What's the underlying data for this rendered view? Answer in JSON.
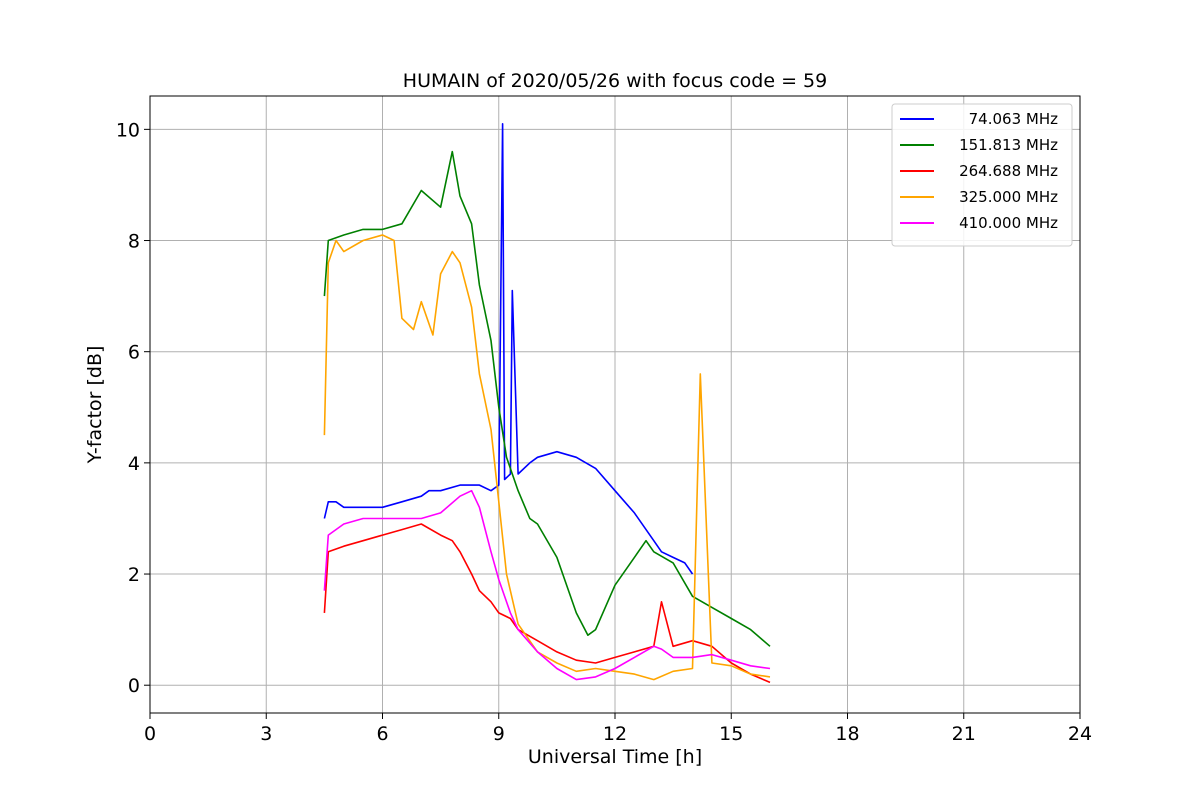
{
  "chart_data": {
    "type": "line",
    "title": "HUMAIN of 2020/05/26 with focus code = 59",
    "xlabel": "Universal Time [h]",
    "ylabel": "Y-factor [dB]",
    "xlim": [
      0,
      24
    ],
    "ylim": [
      -0.5,
      10.6
    ],
    "xticks": [
      0,
      3,
      6,
      9,
      12,
      15,
      18,
      21,
      24
    ],
    "yticks": [
      0,
      2,
      4,
      6,
      8,
      10
    ],
    "grid": true,
    "legend_position": "top-right",
    "series": [
      {
        "name": "74.063 MHz",
        "color": "#0000ff",
        "x": [
          4.5,
          4.6,
          4.8,
          5.0,
          5.5,
          6.0,
          6.5,
          7.0,
          7.2,
          7.5,
          8.0,
          8.5,
          8.8,
          9.0,
          9.1,
          9.15,
          9.3,
          9.35,
          9.5,
          9.8,
          10.0,
          10.5,
          11.0,
          11.5,
          12.0,
          12.5,
          13.0,
          13.2,
          13.5,
          13.8,
          14.0
        ],
        "y": [
          3.0,
          3.3,
          3.3,
          3.2,
          3.2,
          3.2,
          3.3,
          3.4,
          3.5,
          3.5,
          3.6,
          3.6,
          3.5,
          3.6,
          10.1,
          3.7,
          3.8,
          7.1,
          3.8,
          4.0,
          4.1,
          4.2,
          4.1,
          3.9,
          3.5,
          3.1,
          2.6,
          2.4,
          2.3,
          2.2,
          2.0
        ]
      },
      {
        "name": "151.813 MHz",
        "color": "#008000",
        "x": [
          4.5,
          4.6,
          5.0,
          5.5,
          6.0,
          6.5,
          7.0,
          7.5,
          7.8,
          8.0,
          8.3,
          8.5,
          8.8,
          9.0,
          9.2,
          9.5,
          9.8,
          10.0,
          10.5,
          11.0,
          11.3,
          11.5,
          12.0,
          12.5,
          12.8,
          13.0,
          13.5,
          14.0,
          14.5,
          15.0,
          15.5,
          16.0
        ],
        "y": [
          7.0,
          8.0,
          8.1,
          8.2,
          8.2,
          8.3,
          8.9,
          8.6,
          9.6,
          8.8,
          8.3,
          7.2,
          6.2,
          5.0,
          4.1,
          3.5,
          3.0,
          2.9,
          2.3,
          1.3,
          0.9,
          1.0,
          1.8,
          2.3,
          2.6,
          2.4,
          2.2,
          1.6,
          1.4,
          1.2,
          1.0,
          0.7
        ]
      },
      {
        "name": "264.688 MHz",
        "color": "#ff0000",
        "x": [
          4.5,
          4.6,
          5.0,
          5.5,
          6.0,
          6.5,
          7.0,
          7.5,
          7.8,
          8.0,
          8.3,
          8.5,
          8.8,
          9.0,
          9.3,
          9.5,
          10.0,
          10.5,
          11.0,
          11.5,
          12.0,
          12.5,
          13.0,
          13.2,
          13.5,
          14.0,
          14.5,
          15.0,
          15.5,
          16.0
        ],
        "y": [
          1.3,
          2.4,
          2.5,
          2.6,
          2.7,
          2.8,
          2.9,
          2.7,
          2.6,
          2.4,
          2.0,
          1.7,
          1.5,
          1.3,
          1.2,
          1.0,
          0.8,
          0.6,
          0.45,
          0.4,
          0.5,
          0.6,
          0.7,
          1.5,
          0.7,
          0.8,
          0.7,
          0.4,
          0.2,
          0.05
        ]
      },
      {
        "name": "325.000 MHz",
        "color": "#ffa500",
        "x": [
          4.5,
          4.6,
          4.8,
          5.0,
          5.5,
          6.0,
          6.3,
          6.5,
          6.8,
          7.0,
          7.3,
          7.5,
          7.8,
          8.0,
          8.3,
          8.5,
          8.8,
          9.0,
          9.2,
          9.5,
          10.0,
          10.5,
          11.0,
          11.5,
          12.0,
          12.5,
          13.0,
          13.5,
          14.0,
          14.2,
          14.5,
          15.0,
          15.5,
          16.0
        ],
        "y": [
          4.5,
          7.6,
          8.0,
          7.8,
          8.0,
          8.1,
          8.0,
          6.6,
          6.4,
          6.9,
          6.3,
          7.4,
          7.8,
          7.6,
          6.8,
          5.6,
          4.6,
          3.3,
          2.0,
          1.1,
          0.6,
          0.4,
          0.25,
          0.3,
          0.25,
          0.2,
          0.1,
          0.25,
          0.3,
          5.6,
          0.4,
          0.35,
          0.2,
          0.15
        ]
      },
      {
        "name": "410.000 MHz",
        "color": "#ff00ff",
        "x": [
          4.5,
          4.6,
          5.0,
          5.5,
          6.0,
          6.5,
          7.0,
          7.5,
          8.0,
          8.3,
          8.5,
          8.8,
          9.0,
          9.3,
          9.5,
          10.0,
          10.5,
          11.0,
          11.5,
          12.0,
          12.5,
          13.0,
          13.2,
          13.5,
          14.0,
          14.5,
          15.0,
          15.5,
          16.0
        ],
        "y": [
          1.7,
          2.7,
          2.9,
          3.0,
          3.0,
          3.0,
          3.0,
          3.1,
          3.4,
          3.5,
          3.2,
          2.4,
          1.9,
          1.3,
          1.0,
          0.6,
          0.3,
          0.1,
          0.15,
          0.3,
          0.5,
          0.7,
          0.65,
          0.5,
          0.5,
          0.55,
          0.45,
          0.35,
          0.3
        ]
      }
    ]
  }
}
